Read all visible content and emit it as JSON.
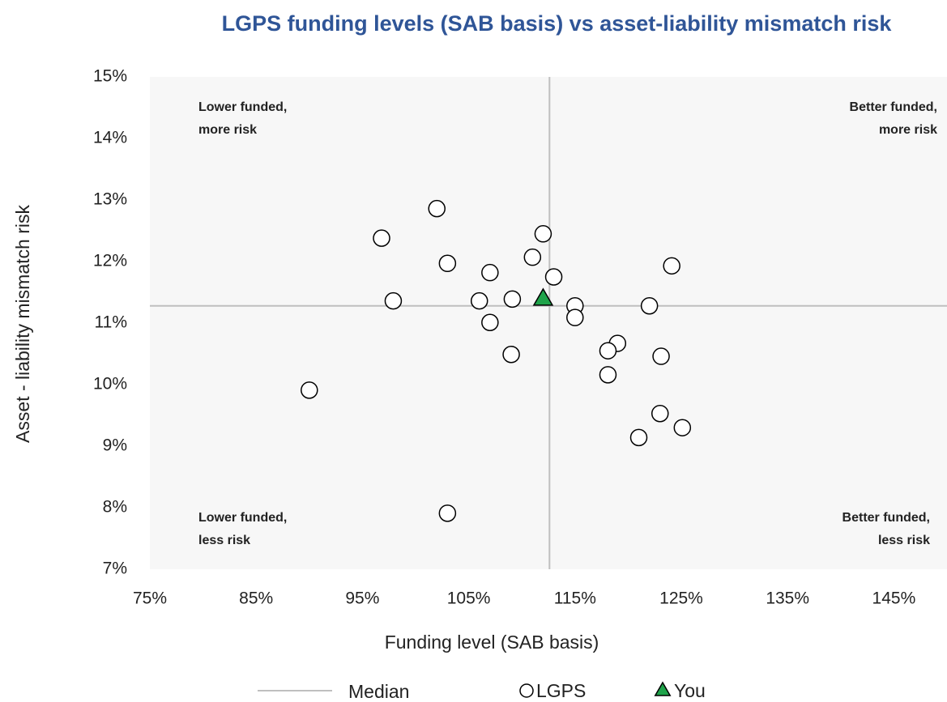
{
  "chart_data": {
    "type": "scatter",
    "title": "LGPS funding levels (SAB basis) vs asset-liability mismatch risk",
    "x_label": "Funding level (SAB basis)",
    "y_label": "Asset - liability mismatch risk",
    "xlim": [
      75,
      150
    ],
    "ylim": [
      7,
      15
    ],
    "xticks": [
      {
        "value": 75,
        "label": "75%"
      },
      {
        "value": 85,
        "label": "85%"
      },
      {
        "value": 95,
        "label": "95%"
      },
      {
        "value": 105,
        "label": "105%"
      },
      {
        "value": 115,
        "label": "115%"
      },
      {
        "value": 125,
        "label": "125%"
      },
      {
        "value": 135,
        "label": "135%"
      },
      {
        "value": 145,
        "label": "145%"
      }
    ],
    "yticks": [
      {
        "value": 7,
        "label": "7%"
      },
      {
        "value": 8,
        "label": "8%"
      },
      {
        "value": 9,
        "label": "9%"
      },
      {
        "value": 10,
        "label": "10%"
      },
      {
        "value": 11,
        "label": "11%"
      },
      {
        "value": 12,
        "label": "12%"
      },
      {
        "value": 13,
        "label": "13%"
      },
      {
        "value": 14,
        "label": "14%"
      },
      {
        "value": 15,
        "label": "15%"
      }
    ],
    "median": {
      "name": "Median",
      "color": "#bfbfbf",
      "x": 112.6,
      "y": 11.28
    },
    "series": [
      {
        "name": "LGPS",
        "marker": "circle",
        "color": "#ffffff",
        "x": [
          102.0,
          96.8,
          103.0,
          107.0,
          111.0,
          112.0,
          113.0,
          97.9,
          106.0,
          109.1,
          107.0,
          109.0,
          115.0,
          115.0,
          124.1,
          122.0,
          119.0,
          118.1,
          118.1,
          123.1,
          90.0,
          123.0,
          125.1,
          121.0,
          103.0
        ],
        "values": [
          12.86,
          12.38,
          11.97,
          11.82,
          12.07,
          12.45,
          11.75,
          11.36,
          11.36,
          11.39,
          11.01,
          10.49,
          11.28,
          11.09,
          11.93,
          11.28,
          10.67,
          10.55,
          10.16,
          10.46,
          9.91,
          9.53,
          9.3,
          9.14,
          7.91
        ]
      },
      {
        "name": "You",
        "marker": "triangle",
        "color": "#1fa34a",
        "x": [
          112.0
        ],
        "values": [
          11.39
        ]
      }
    ],
    "annotations": [
      [
        "Lower funded,",
        "more risk"
      ],
      [
        "Better funded,",
        "more risk"
      ],
      [
        "Lower funded,",
        "less risk"
      ],
      [
        "Better funded,",
        "less risk"
      ]
    ]
  }
}
